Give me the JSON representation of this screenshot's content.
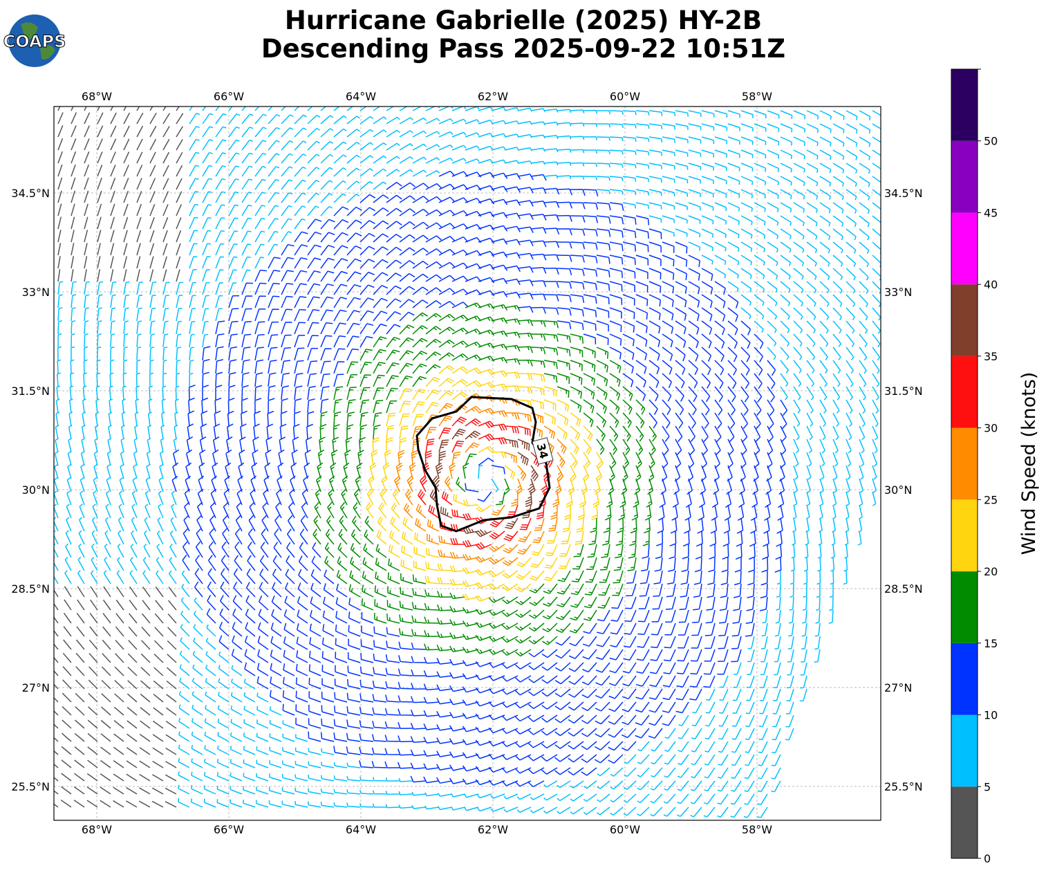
{
  "logo": "COAPS",
  "title": [
    "Hurricane Gabrielle (2025) HY-2B",
    "Descending Pass 2025-09-22 10:51Z"
  ],
  "map": {
    "xticks": [
      {
        "value": -68,
        "label": "68°W"
      },
      {
        "value": -66,
        "label": "66°W"
      },
      {
        "value": -64,
        "label": "64°W"
      },
      {
        "value": -62,
        "label": "62°W"
      },
      {
        "value": -60,
        "label": "60°W"
      },
      {
        "value": -58,
        "label": "58°W"
      }
    ],
    "yticks": [
      {
        "value": 34.5,
        "label": "34.5°N"
      },
      {
        "value": 33,
        "label": "33°N"
      },
      {
        "value": 31.5,
        "label": "31.5°N"
      },
      {
        "value": 30,
        "label": "30°N"
      },
      {
        "value": 28.5,
        "label": "28.5°N"
      },
      {
        "value": 27,
        "label": "27°N"
      },
      {
        "value": 25.5,
        "label": "25.5°N"
      }
    ],
    "contour_label": "34"
  },
  "colorbar": {
    "label": "Wind Speed (knots)",
    "lim": [
      0,
      55
    ],
    "ticks": [
      0,
      5,
      10,
      15,
      20,
      25,
      30,
      35,
      40,
      45,
      50
    ],
    "colors": [
      "#555555",
      "#00bfff",
      "#0033ff",
      "#008c00",
      "#ffd510",
      "#ff8c00",
      "#ff1010",
      "#7f3f2a",
      "#ff00ff",
      "#8a00c0",
      "#2b0060"
    ]
  }
}
